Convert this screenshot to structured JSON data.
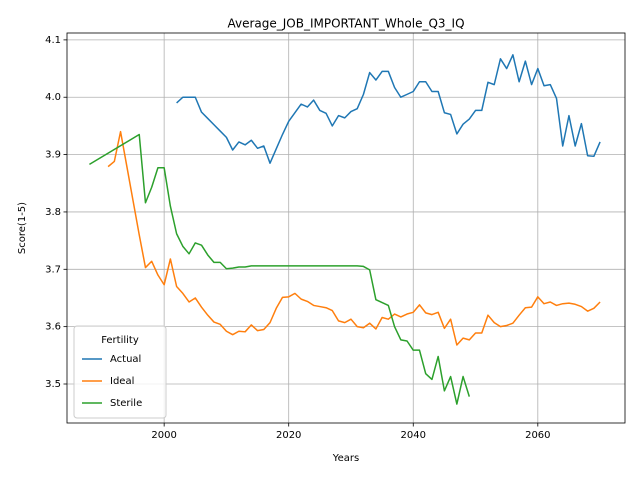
{
  "chart_data": {
    "type": "line",
    "title": "Average_JOB_IMPORTANT_Whole_Q3_IQ",
    "x_label": "Years",
    "y_label": "Score(1-5)",
    "xlim": [
      1984.4,
      2074.0
    ],
    "ylim": [
      3.432,
      4.112
    ],
    "xticks": [
      2000,
      2020,
      2040,
      2060
    ],
    "yticks": [
      3.5,
      3.6,
      3.7,
      3.8,
      3.9,
      {
        "value": 4,
        "label": "4.0"
      },
      4.1
    ],
    "grid": true,
    "legend_title": "Fertility",
    "legend_position": "lower left",
    "series": [
      {
        "name": "Actual",
        "color": "#1f77b4",
        "x": [
          2002,
          2003,
          2004,
          2005,
          2006,
          2007,
          2008,
          2009,
          2010,
          2011,
          2012,
          2013,
          2014,
          2015,
          2016,
          2017,
          2018,
          2019,
          2020,
          2021,
          2022,
          2023,
          2024,
          2025,
          2026,
          2027,
          2028,
          2029,
          2030,
          2031,
          2032,
          2033,
          2034,
          2035,
          2036,
          2037,
          2038,
          2039,
          2040,
          2041,
          2042,
          2043,
          2044,
          2045,
          2046,
          2047,
          2048,
          2049,
          2050,
          2051,
          2052,
          2053,
          2054,
          2055,
          2056,
          2057,
          2058,
          2059,
          2060,
          2061,
          2062,
          2063,
          2064,
          2065,
          2066,
          2067,
          2068,
          2069,
          2070
        ],
        "values": [
          3.99,
          4.0,
          4.0,
          4.0,
          3.974,
          3.963,
          3.952,
          3.941,
          3.93,
          3.908,
          3.922,
          3.917,
          3.925,
          3.911,
          3.915,
          3.885,
          3.91,
          3.935,
          3.958,
          3.973,
          3.988,
          3.983,
          3.995,
          3.977,
          3.972,
          3.95,
          3.968,
          3.964,
          3.975,
          3.98,
          4.005,
          4.043,
          4.03,
          4.045,
          4.045,
          4.017,
          4.0,
          4.005,
          4.01,
          4.027,
          4.027,
          4.01,
          4.01,
          3.973,
          3.97,
          3.936,
          3.953,
          3.962,
          3.977,
          3.977,
          4.026,
          4.022,
          4.067,
          4.05,
          4.074,
          4.027,
          4.063,
          4.022,
          4.05,
          4.02,
          4.022,
          3.998,
          3.915,
          3.968,
          3.915,
          3.954,
          3.898,
          3.897,
          3.922
        ]
      },
      {
        "name": "Ideal",
        "color": "#ff7f0e",
        "x": [
          1991,
          1992,
          1993,
          1994,
          1995,
          1996,
          1997,
          1998,
          1999,
          2000,
          2001,
          2002,
          2003,
          2004,
          2005,
          2006,
          2007,
          2008,
          2009,
          2010,
          2011,
          2012,
          2013,
          2014,
          2015,
          2016,
          2017,
          2018,
          2019,
          2020,
          2021,
          2022,
          2023,
          2024,
          2025,
          2026,
          2027,
          2028,
          2029,
          2030,
          2031,
          2032,
          2033,
          2034,
          2035,
          2036,
          2037,
          2038,
          2039,
          2040,
          2041,
          2042,
          2043,
          2044,
          2045,
          2046,
          2047,
          2048,
          2049,
          2050,
          2051,
          2052,
          2053,
          2054,
          2055,
          2056,
          2057,
          2058,
          2059,
          2060,
          2061,
          2062,
          2063,
          2064,
          2065,
          2066,
          2067,
          2068,
          2069,
          2070
        ],
        "values": [
          3.879,
          3.888,
          3.94,
          3.88,
          3.82,
          3.76,
          3.703,
          3.714,
          3.69,
          3.673,
          3.718,
          3.67,
          3.658,
          3.643,
          3.65,
          3.634,
          3.62,
          3.608,
          3.604,
          3.592,
          3.586,
          3.592,
          3.591,
          3.603,
          3.593,
          3.595,
          3.607,
          3.632,
          3.651,
          3.652,
          3.658,
          3.648,
          3.644,
          3.637,
          3.635,
          3.633,
          3.628,
          3.61,
          3.607,
          3.613,
          3.6,
          3.598,
          3.606,
          3.596,
          3.616,
          3.613,
          3.622,
          3.617,
          3.622,
          3.625,
          3.638,
          3.624,
          3.621,
          3.625,
          3.597,
          3.613,
          3.568,
          3.58,
          3.577,
          3.589,
          3.589,
          3.62,
          3.607,
          3.6,
          3.602,
          3.606,
          3.62,
          3.633,
          3.634,
          3.652,
          3.64,
          3.643,
          3.637,
          3.64,
          3.641,
          3.639,
          3.635,
          3.627,
          3.632,
          3.643
        ]
      },
      {
        "name": "Sterile",
        "color": "#2ca02c",
        "x": [
          1988,
          1996,
          1997,
          1998,
          1999,
          2000,
          2001,
          2002,
          2003,
          2004,
          2005,
          2006,
          2007,
          2008,
          2009,
          2010,
          2011,
          2012,
          2013,
          2014,
          2015,
          2016,
          2017,
          2018,
          2019,
          2020,
          2021,
          2022,
          2023,
          2024,
          2025,
          2026,
          2027,
          2028,
          2029,
          2030,
          2031,
          2032,
          2033,
          2034,
          2035,
          2036,
          2037,
          2038,
          2039,
          2040,
          2041,
          2042,
          2043,
          2044,
          2045,
          2046,
          2047,
          2048,
          2049
        ],
        "values": [
          3.883,
          3.935,
          3.816,
          3.843,
          3.877,
          3.877,
          3.81,
          3.762,
          3.74,
          3.727,
          3.746,
          3.742,
          3.725,
          3.712,
          3.712,
          3.701,
          3.702,
          3.704,
          3.704,
          3.706,
          3.706,
          3.706,
          3.706,
          3.706,
          3.706,
          3.706,
          3.706,
          3.706,
          3.706,
          3.706,
          3.706,
          3.706,
          3.706,
          3.706,
          3.706,
          3.706,
          3.706,
          3.705,
          3.699,
          3.647,
          3.642,
          3.637,
          3.6,
          3.577,
          3.575,
          3.559,
          3.559,
          3.518,
          3.508,
          3.548,
          3.488,
          3.513,
          3.465,
          3.513,
          3.478
        ]
      }
    ]
  }
}
